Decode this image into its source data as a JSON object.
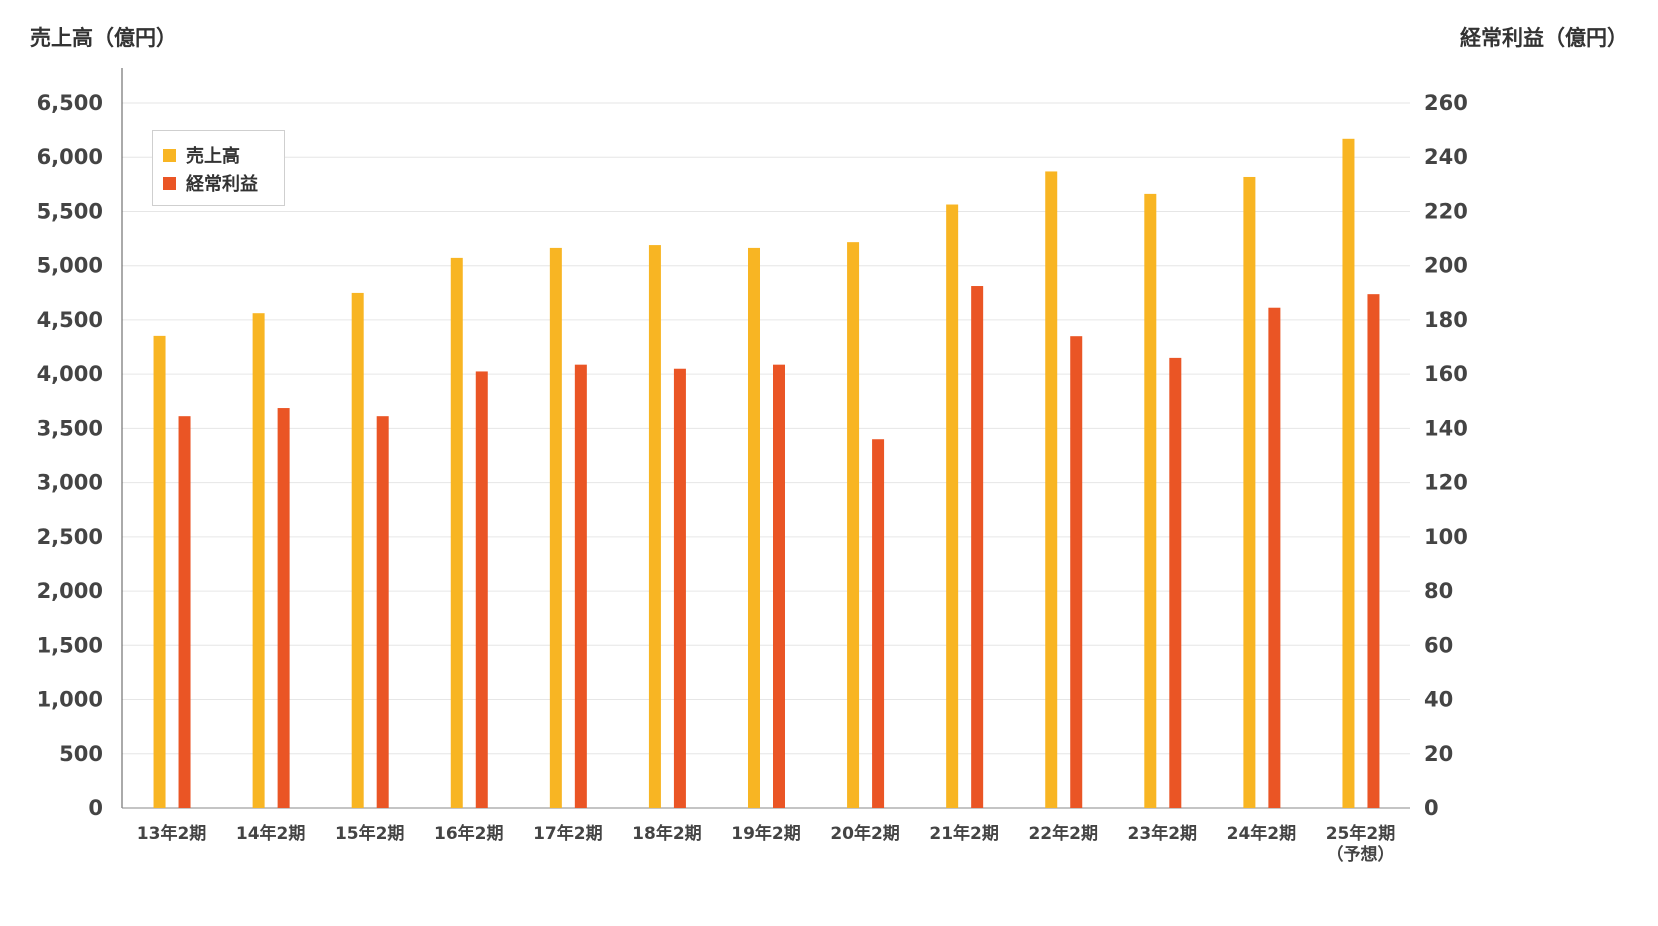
{
  "chart_data": {
    "type": "bar",
    "categories": [
      "13年2期",
      "14年2期",
      "15年2期",
      "16年2期",
      "17年2期",
      "18年2期",
      "19年2期",
      "20年2期",
      "21年2期",
      "22年2期",
      "23年2期",
      "24年2期",
      "25年2期"
    ],
    "category_notes": [
      "",
      "",
      "",
      "",
      "",
      "",
      "",
      "",
      "",
      "",
      "",
      "",
      "（予想）"
    ],
    "series": [
      {
        "name": "売上高",
        "axis": "left",
        "color": "#F8B523",
        "values": [
          4353,
          4562,
          4749,
          5072,
          5164,
          5190,
          5164,
          5217,
          5564,
          5869,
          5662,
          5818,
          6170
        ]
      },
      {
        "name": "経常利益",
        "axis": "right",
        "color": "#EA5525",
        "values": [
          144.5,
          147.5,
          144.5,
          161,
          163.5,
          162,
          163.5,
          136,
          192.5,
          174,
          166,
          184.5,
          189.5
        ]
      }
    ],
    "ylabel_left": "売上高（億円）",
    "ylabel_right": "経常利益（億円）",
    "ylim_left": [
      0,
      6500
    ],
    "ylim_right": [
      0,
      260
    ],
    "yticks_left": [
      "0",
      "500",
      "1,000",
      "1,500",
      "2,000",
      "2,500",
      "3,000",
      "3,500",
      "4,000",
      "4,500",
      "5,000",
      "5,500",
      "6,000",
      "6,500"
    ],
    "yticks_right": [
      "0",
      "20",
      "40",
      "60",
      "80",
      "100",
      "120",
      "140",
      "160",
      "180",
      "200",
      "220",
      "240",
      "260"
    ],
    "grid": true,
    "legend_position": "top-left"
  }
}
